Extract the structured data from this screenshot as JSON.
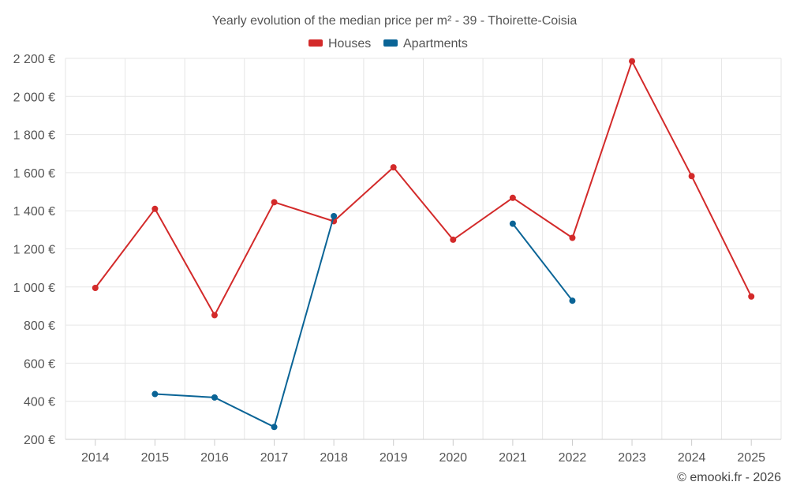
{
  "chart_data": {
    "type": "line",
    "title": "Yearly evolution of the median price per m² - 39 - Thoirette-Coisia",
    "categories": [
      "2014",
      "2015",
      "2016",
      "2017",
      "2018",
      "2019",
      "2020",
      "2021",
      "2022",
      "2023",
      "2024",
      "2025"
    ],
    "y_ticks": [
      "200 €",
      "400 €",
      "600 €",
      "800 €",
      "1 000 €",
      "1 200 €",
      "1 400 €",
      "1 600 €",
      "1 800 €",
      "2 000 €",
      "2 200 €"
    ],
    "ylim": [
      200,
      2200
    ],
    "y_tick_step": 200,
    "legend_position": "top-center",
    "grid": true,
    "series": [
      {
        "name": "Houses",
        "color": "#d32a2a",
        "values": [
          995,
          1410,
          852,
          1445,
          1345,
          1628,
          1248,
          1468,
          1258,
          2185,
          1582,
          950
        ]
      },
      {
        "name": "Apartments",
        "color": "#0a6496",
        "values": [
          null,
          438,
          420,
          265,
          1372,
          null,
          null,
          1332,
          928,
          null,
          null,
          null
        ]
      }
    ],
    "credit": "© emooki.fr - 2026"
  }
}
